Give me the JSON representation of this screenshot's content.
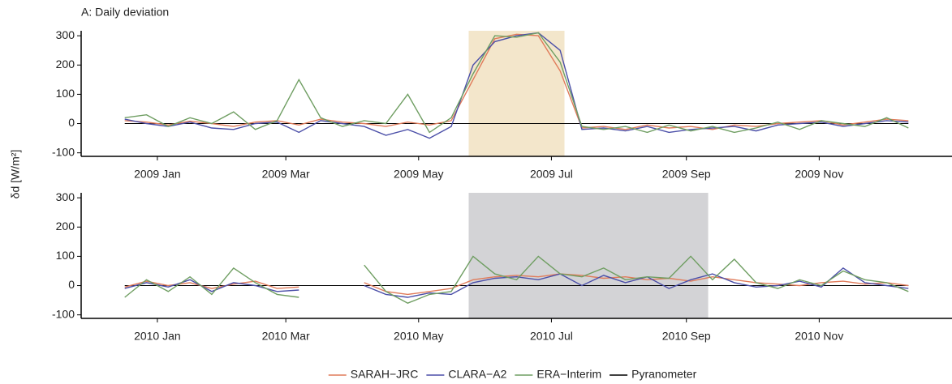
{
  "chart_data": [
    {
      "type": "line",
      "title": "A: Daily deviation",
      "ylabel": "δd [W/m²]",
      "x": [
        -15,
        -5,
        5,
        15,
        25,
        35,
        45,
        55,
        65,
        75,
        85,
        95,
        105,
        115,
        125,
        135,
        145,
        155,
        165,
        175,
        185,
        195,
        205,
        215,
        225,
        235,
        245,
        255,
        265,
        275,
        285,
        295,
        305,
        315,
        325,
        335,
        345
      ],
      "series": [
        {
          "name": "SARAH−JRC",
          "color": "#e07b5a",
          "values": [
            10,
            5,
            -5,
            8,
            0,
            -10,
            5,
            10,
            -5,
            15,
            5,
            0,
            -10,
            5,
            -5,
            10,
            150,
            290,
            305,
            300,
            180,
            -15,
            -10,
            -20,
            -5,
            -15,
            -10,
            -20,
            -5,
            -10,
            0,
            5,
            10,
            -5,
            5,
            15,
            10
          ]
        },
        {
          "name": "CLARA−A2",
          "color": "#4b4fa8",
          "values": [
            15,
            0,
            -10,
            5,
            -15,
            -20,
            0,
            5,
            -30,
            10,
            0,
            -10,
            -40,
            -20,
            -50,
            -10,
            200,
            280,
            300,
            310,
            250,
            -20,
            -15,
            -25,
            -10,
            -30,
            -20,
            -15,
            -10,
            -25,
            -5,
            0,
            5,
            -10,
            0,
            10,
            5
          ]
        },
        {
          "name": "ERA−Interim",
          "color": "#6f9e62",
          "values": [
            20,
            30,
            -10,
            20,
            0,
            40,
            -20,
            10,
            150,
            20,
            -10,
            10,
            0,
            100,
            -30,
            20,
            170,
            300,
            295,
            310,
            210,
            -10,
            -20,
            -10,
            -30,
            -5,
            -25,
            -10,
            -30,
            -15,
            5,
            -20,
            10,
            0,
            -10,
            20,
            -15
          ]
        },
        {
          "name": "Pyranometer",
          "color": "#000000",
          "values": [
            0,
            0,
            0,
            0,
            0,
            0,
            0,
            0,
            0,
            0,
            0,
            0,
            0,
            0,
            0,
            0,
            0,
            0,
            0,
            0,
            0,
            0,
            0,
            0,
            0,
            0,
            0,
            0,
            0,
            0,
            0,
            0,
            0,
            0,
            0,
            0,
            0
          ]
        }
      ],
      "span": [
        143,
        187
      ],
      "span_color": "#f3e6cb",
      "xlim": [
        -35,
        365
      ],
      "xticks": [
        {
          "value": 0,
          "label": "2009 Jan"
        },
        {
          "value": 59,
          "label": "2009 Mar"
        },
        {
          "value": 120,
          "label": "2009 May"
        },
        {
          "value": 181,
          "label": "2009 Jul"
        },
        {
          "value": 243,
          "label": "2009 Sep"
        },
        {
          "value": 304,
          "label": "2009 Nov"
        }
      ],
      "ylim": [
        -112,
        317
      ],
      "yticks": [
        -100,
        0,
        100,
        200,
        300
      ]
    },
    {
      "type": "line",
      "x": [
        -15,
        -5,
        5,
        15,
        25,
        35,
        45,
        55,
        65,
        75,
        85,
        95,
        105,
        115,
        125,
        135,
        145,
        155,
        165,
        175,
        185,
        195,
        205,
        215,
        225,
        235,
        245,
        255,
        265,
        275,
        285,
        295,
        305,
        315,
        325,
        335,
        345
      ],
      "series": [
        {
          "name": "SARAH−JRC",
          "color": "#e07b5a",
          "values": [
            -5,
            15,
            0,
            10,
            -10,
            5,
            15,
            -10,
            -5,
            null,
            null,
            10,
            -20,
            -30,
            -20,
            -10,
            20,
            30,
            35,
            30,
            40,
            35,
            25,
            30,
            20,
            25,
            15,
            30,
            20,
            10,
            5,
            0,
            10,
            15,
            5,
            10,
            0
          ]
        },
        {
          "name": "CLARA−A2",
          "color": "#4b4fa8",
          "values": [
            -10,
            10,
            -5,
            20,
            -20,
            10,
            0,
            -20,
            -15,
            null,
            null,
            0,
            -30,
            -40,
            -25,
            -30,
            10,
            25,
            30,
            20,
            40,
            0,
            35,
            10,
            30,
            -10,
            20,
            40,
            10,
            -5,
            0,
            15,
            -5,
            60,
            10,
            0,
            -10
          ]
        },
        {
          "name": "ERA−Interim",
          "color": "#6f9e62",
          "values": [
            -40,
            20,
            -20,
            30,
            -30,
            60,
            10,
            -30,
            -40,
            null,
            null,
            70,
            -20,
            -60,
            -30,
            -20,
            100,
            40,
            20,
            100,
            40,
            30,
            60,
            20,
            30,
            25,
            100,
            20,
            90,
            10,
            -10,
            20,
            0,
            50,
            20,
            10,
            -20
          ]
        },
        {
          "name": "Pyranometer",
          "color": "#000000",
          "values": [
            0,
            0,
            0,
            0,
            0,
            0,
            0,
            0,
            0,
            0,
            0,
            0,
            0,
            0,
            0,
            0,
            0,
            0,
            0,
            0,
            0,
            0,
            0,
            0,
            0,
            0,
            0,
            0,
            0,
            0,
            0,
            0,
            0,
            0,
            0,
            0,
            0
          ]
        }
      ],
      "span": [
        143,
        253
      ],
      "span_color": "#d3d3d6",
      "xlim": [
        -35,
        365
      ],
      "xticks": [
        {
          "value": 0,
          "label": "2010 Jan"
        },
        {
          "value": 59,
          "label": "2010 Mar"
        },
        {
          "value": 120,
          "label": "2010 May"
        },
        {
          "value": 181,
          "label": "2010 Jul"
        },
        {
          "value": 243,
          "label": "2010 Sep"
        },
        {
          "value": 304,
          "label": "2010 Nov"
        }
      ],
      "ylim": [
        -112,
        317
      ],
      "yticks": [
        -100,
        0,
        100,
        200,
        300
      ]
    }
  ]
}
